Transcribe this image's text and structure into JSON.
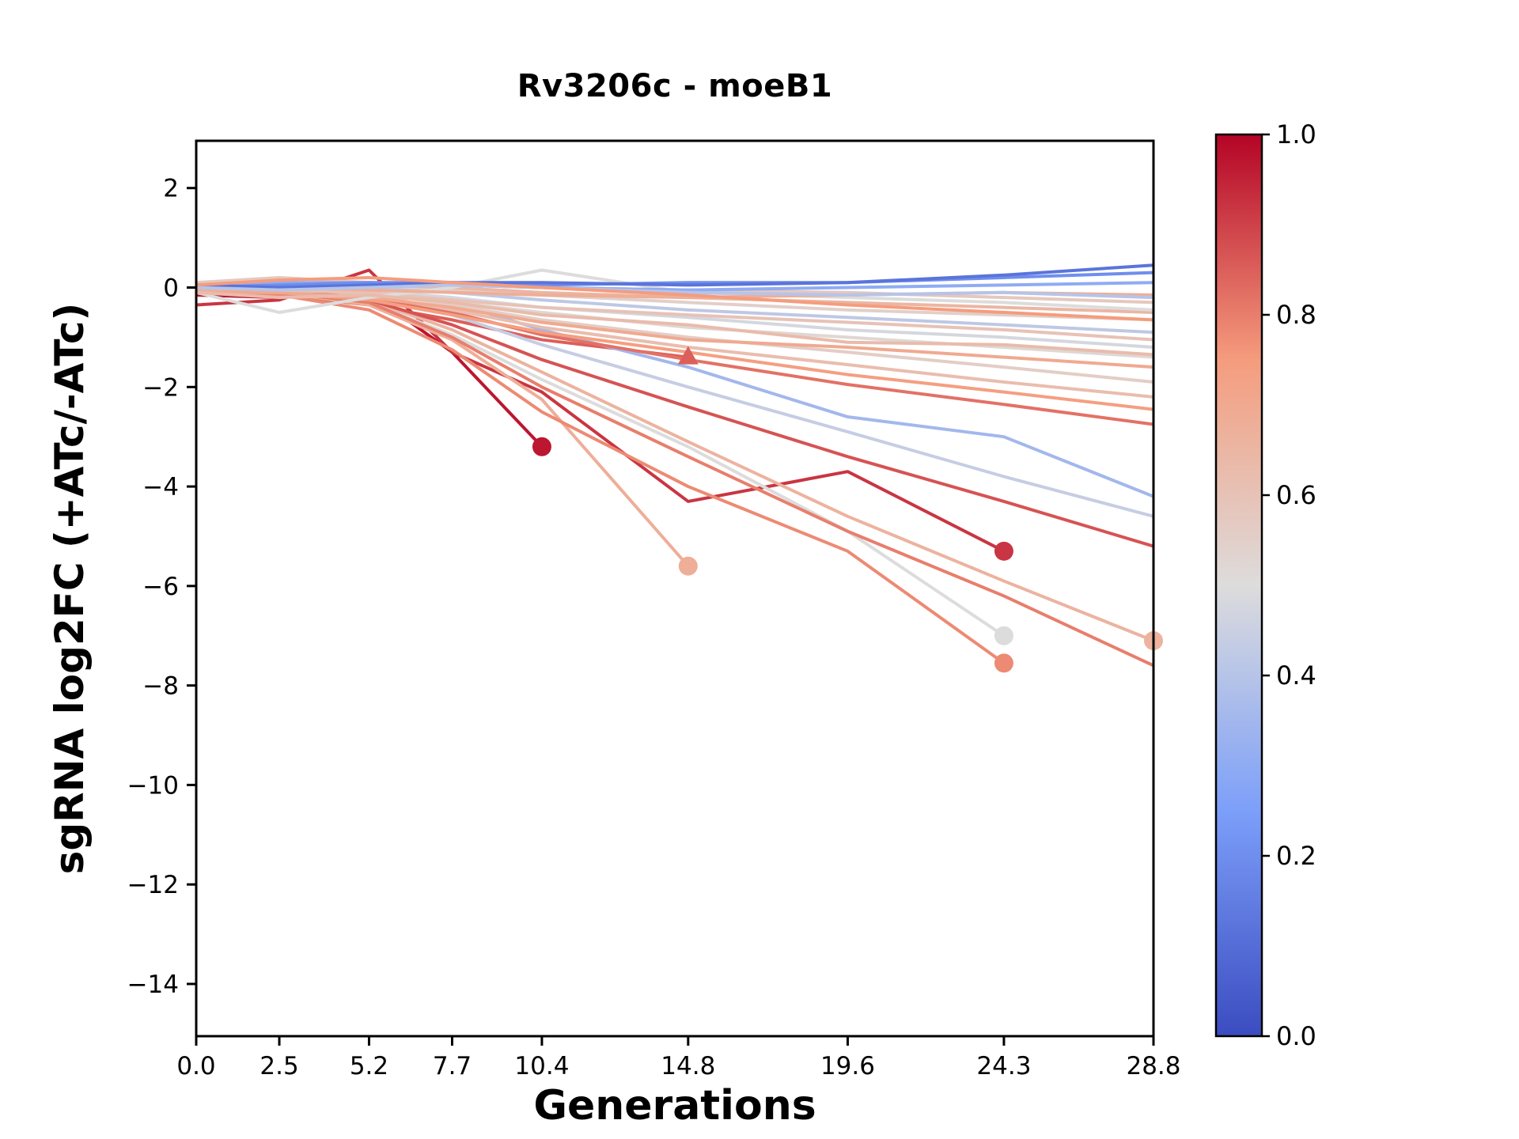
{
  "figure": {
    "background": "#ffffff"
  },
  "chart_data": {
    "type": "line",
    "title": "Rv3206c - moeB1",
    "xlabel": "Generations",
    "ylabel": "sgRNA log2FC (+ATc/-ATc)",
    "x": [
      0.0,
      2.5,
      5.2,
      7.7,
      10.4,
      14.8,
      19.6,
      24.3,
      28.8
    ],
    "xtick_labels": [
      "0.0",
      "2.5",
      "5.2",
      "7.7",
      "10.4",
      "14.8",
      "19.6",
      "24.3",
      "28.8"
    ],
    "xlim": [
      0,
      28.8
    ],
    "ylim": [
      -15.05,
      2.95
    ],
    "yticks": [
      2,
      0,
      -2,
      -4,
      -6,
      -8,
      -10,
      -12,
      -14
    ],
    "ytick_labels": [
      "2",
      "0",
      "−2",
      "−4",
      "−6",
      "−8",
      "−10",
      "−12",
      "−14"
    ],
    "grid": false,
    "legend": "none",
    "colorbar": {
      "range_min": 0.0,
      "range_max": 1.0,
      "ticks": [
        {
          "v": 1.0,
          "label": "1.0"
        },
        {
          "v": 0.8,
          "label": "0.8"
        },
        {
          "v": 0.6,
          "label": "0.6"
        },
        {
          "v": 0.4,
          "label": "0.4"
        },
        {
          "v": 0.2,
          "label": "0.2"
        },
        {
          "v": 0.0,
          "label": "0.0"
        }
      ]
    },
    "colormap": {
      "name": "coolwarm",
      "stops": [
        {
          "t": 0.0,
          "hex": "#3b4cc0"
        },
        {
          "t": 0.25,
          "hex": "#7c9ff9"
        },
        {
          "t": 0.5,
          "hex": "#dddcdc"
        },
        {
          "t": 0.75,
          "hex": "#f59c7d"
        },
        {
          "t": 1.0,
          "hex": "#b40426"
        }
      ]
    },
    "series": [
      {
        "c": 0.97,
        "marker": "circle",
        "y": [
          -0.15,
          -0.2,
          -0.1,
          -1.3,
          -3.2
        ]
      },
      {
        "c": 0.92,
        "marker": "circle",
        "y": [
          -0.35,
          -0.25,
          0.35,
          -1.3,
          -2.1,
          -4.3,
          -3.7,
          -5.3
        ]
      },
      {
        "c": 0.85,
        "marker": "triangle",
        "y": [
          -0.1,
          -0.15,
          -0.35,
          -0.65,
          -1.05,
          -1.4
        ]
      },
      {
        "c": 0.68,
        "marker": "circle",
        "y": [
          0.0,
          -0.1,
          -0.35,
          -1.05,
          -2.25,
          -5.6
        ]
      },
      {
        "c": 0.78,
        "marker": "circle",
        "y": [
          -0.05,
          -0.15,
          -0.45,
          -1.25,
          -2.5,
          -4.0,
          -5.3,
          -7.55
        ]
      },
      {
        "c": 0.5,
        "marker": "circle",
        "y": [
          0.0,
          -0.05,
          -0.3,
          -0.95,
          -1.85,
          -3.2,
          -4.9,
          -7.0
        ]
      },
      {
        "c": 0.66,
        "marker": "circle",
        "y": [
          0.0,
          -0.1,
          -0.25,
          -0.85,
          -1.7,
          -3.1,
          -4.6,
          -5.9,
          -7.1
        ]
      },
      {
        "c": 0.8,
        "marker": null,
        "y": [
          -0.05,
          -0.1,
          -0.3,
          -1.0,
          -2.0,
          -3.4,
          -4.9,
          -6.2,
          -7.6
        ]
      },
      {
        "c": 0.87,
        "marker": null,
        "y": [
          -0.05,
          -0.1,
          -0.25,
          -0.75,
          -1.45,
          -2.4,
          -3.4,
          -4.3,
          -5.2
        ]
      },
      {
        "c": 0.44,
        "marker": null,
        "y": [
          0.05,
          0.0,
          -0.15,
          -0.55,
          -1.15,
          -2.0,
          -2.9,
          -3.8,
          -4.6
        ]
      },
      {
        "c": 0.35,
        "marker": null,
        "y": [
          0.1,
          0.05,
          0.0,
          -0.3,
          -0.85,
          -1.6,
          -2.6,
          -3.0,
          -4.2
        ]
      },
      {
        "c": 0.82,
        "marker": null,
        "y": [
          0.0,
          -0.05,
          -0.2,
          -0.5,
          -0.95,
          -1.45,
          -1.95,
          -2.35,
          -2.75
        ]
      },
      {
        "c": 0.74,
        "marker": null,
        "y": [
          -0.05,
          -0.1,
          -0.25,
          -0.55,
          -0.9,
          -1.3,
          -1.75,
          -2.1,
          -2.45
        ]
      },
      {
        "c": 0.62,
        "marker": null,
        "y": [
          0.0,
          0.0,
          -0.15,
          -0.45,
          -0.8,
          -1.2,
          -1.55,
          -1.9,
          -2.2
        ]
      },
      {
        "c": 0.56,
        "marker": null,
        "y": [
          0.0,
          -0.05,
          -0.1,
          -0.35,
          -0.65,
          -1.0,
          -1.3,
          -1.6,
          -1.9
        ]
      },
      {
        "c": 0.7,
        "marker": null,
        "y": [
          -0.1,
          -0.1,
          -0.2,
          -0.4,
          -0.7,
          -1.05,
          -1.2,
          -1.4,
          -1.6
        ]
      },
      {
        "c": 0.52,
        "marker": null,
        "y": [
          0.0,
          0.0,
          -0.1,
          -0.3,
          -0.5,
          -0.8,
          -1.0,
          -1.2,
          -1.4
        ]
      },
      {
        "c": 0.48,
        "marker": null,
        "y": [
          0.05,
          0.0,
          -0.05,
          -0.2,
          -0.4,
          -0.6,
          -0.85,
          -1.0,
          -1.2
        ]
      },
      {
        "c": 0.6,
        "marker": null,
        "y": [
          0.0,
          -0.05,
          -0.1,
          -0.25,
          -0.4,
          -0.55,
          -0.7,
          -0.85,
          -1.05
        ]
      },
      {
        "c": 0.42,
        "marker": null,
        "y": [
          0.0,
          0.05,
          0.0,
          -0.1,
          -0.25,
          -0.45,
          -0.6,
          -0.75,
          -0.9
        ]
      },
      {
        "c": 0.55,
        "marker": null,
        "y": [
          -0.05,
          0.0,
          0.05,
          -0.05,
          -0.15,
          -0.3,
          -0.45,
          -0.55,
          -0.65
        ]
      },
      {
        "c": 0.65,
        "marker": null,
        "y": [
          0.0,
          0.1,
          0.05,
          0.0,
          -0.1,
          -0.2,
          -0.3,
          -0.4,
          -0.5
        ]
      },
      {
        "c": 0.5,
        "marker": null,
        "y": [
          -0.1,
          -0.5,
          -0.2,
          0.0,
          0.35,
          -0.1,
          -0.2,
          -0.3,
          -0.45
        ]
      },
      {
        "c": 0.58,
        "marker": null,
        "y": [
          0.1,
          0.2,
          0.1,
          0.05,
          0.0,
          -0.05,
          -0.1,
          -0.2,
          -0.3
        ]
      },
      {
        "c": 0.68,
        "marker": null,
        "y": [
          -0.05,
          0.0,
          -0.05,
          -0.1,
          -0.15,
          -0.2,
          -0.15,
          -0.1,
          -0.15
        ]
      },
      {
        "c": 0.3,
        "marker": null,
        "y": [
          0.05,
          0.1,
          0.1,
          0.05,
          0.0,
          -0.05,
          0.0,
          0.05,
          0.1
        ]
      },
      {
        "c": 0.2,
        "marker": null,
        "y": [
          0.0,
          0.05,
          0.1,
          0.1,
          0.05,
          0.1,
          0.1,
          0.2,
          0.3
        ]
      },
      {
        "c": 0.12,
        "marker": null,
        "y": [
          0.05,
          0.0,
          0.05,
          0.1,
          0.1,
          0.05,
          0.1,
          0.25,
          0.45
        ]
      },
      {
        "c": 0.4,
        "marker": null,
        "y": [
          0.0,
          -0.05,
          0.0,
          0.05,
          0.0,
          -0.1,
          -0.15,
          -0.1,
          -0.2
        ]
      },
      {
        "c": 0.75,
        "marker": null,
        "y": [
          0.05,
          0.15,
          0.2,
          0.1,
          0.0,
          -0.15,
          -0.35,
          -0.5,
          -0.65
        ]
      },
      {
        "c": 0.63,
        "marker": null,
        "y": [
          -0.1,
          -0.2,
          -0.15,
          -0.3,
          -0.55,
          -0.75,
          -1.1,
          -1.15,
          -1.35
        ]
      }
    ]
  }
}
